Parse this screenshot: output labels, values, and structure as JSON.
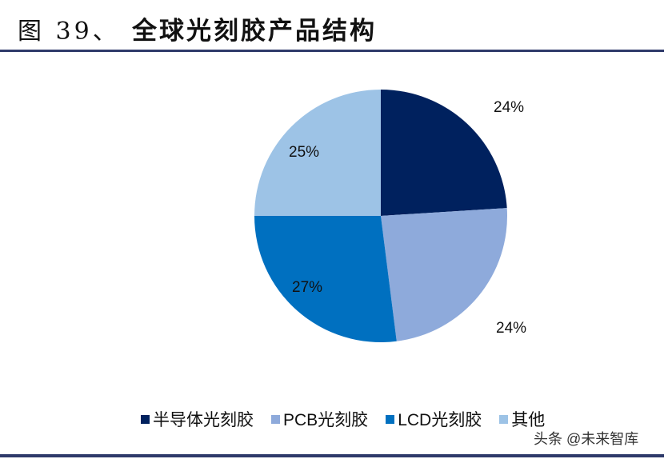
{
  "header": {
    "figure_label": "图 39、",
    "title": "全球光刻胶产品结构"
  },
  "chart_data": {
    "type": "pie",
    "title": "全球光刻胶产品结构",
    "categories": [
      "半导体光刻胶",
      "PCB光刻胶",
      "LCD光刻胶",
      "其他"
    ],
    "values": [
      24,
      24,
      27,
      25
    ],
    "labels": [
      "24%",
      "24%",
      "27%",
      "25%"
    ],
    "colors": [
      "#00215e",
      "#8eaadb",
      "#0070c0",
      "#9dc3e6"
    ],
    "start_angle_deg": 0,
    "direction": "clockwise",
    "legend_position": "bottom"
  },
  "legend": {
    "items": [
      {
        "label": "半导体光刻胶",
        "color": "#00215e"
      },
      {
        "label": "PCB光刻胶",
        "color": "#8eaadb"
      },
      {
        "label": "LCD光刻胶",
        "color": "#0070c0"
      },
      {
        "label": "其他",
        "color": "#9dc3e6"
      }
    ]
  },
  "watermark": "头条 @未来智库"
}
